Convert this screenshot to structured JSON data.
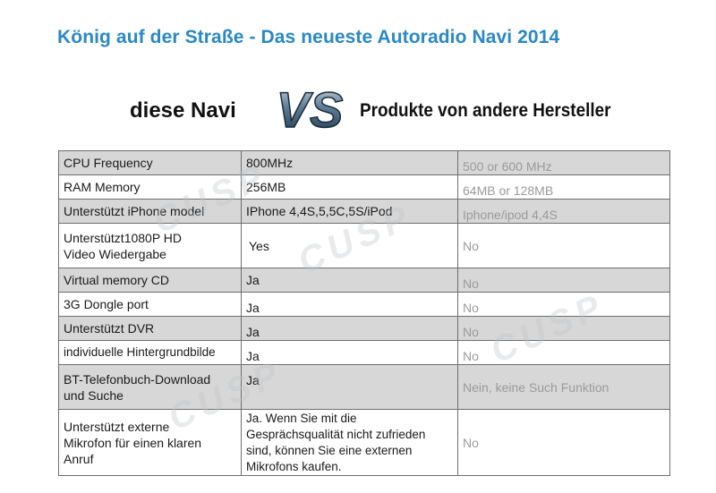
{
  "headline": "König auf der Straße - Das neueste Autoradio Navi 2014",
  "left_label": "diese Navi",
  "vs_text": "VS",
  "right_label": "Produkte von andere Hersteller",
  "watermark": "CUSP",
  "rows": [
    {
      "feature": "CPU Frequency",
      "this": "800MHz",
      "other": "500 or 600 MHz",
      "shaded": true
    },
    {
      "feature": "RAM Memory",
      "this": "256MB",
      "other": "64MB or 128MB",
      "shaded": false
    },
    {
      "feature": "Unterstützt iPhone model",
      "this": "IPhone 4,4S,5,5C,5S/iPod",
      "other": "Iphone/ipod 4,4S",
      "shaded": true
    },
    {
      "feature_line1": "Unterstützt1080P HD",
      "feature_line2": "Video Wiedergabe",
      "this": "Yes",
      "other": "No",
      "shaded": false
    },
    {
      "feature": "Virtual memory CD",
      "this": "Ja",
      "other": "No",
      "shaded": true
    },
    {
      "feature": "3G Dongle port",
      "this": "Ja",
      "other": "No",
      "shaded": false
    },
    {
      "feature": "Unterstützt DVR",
      "this": "Ja",
      "other": "No",
      "shaded": true
    },
    {
      "feature": "individuelle Hintergrundbilde",
      "this": "Ja",
      "other": "No",
      "shaded": false
    },
    {
      "feature_line1": "BT-Telefonbuch-Download",
      "feature_line2": "und Suche",
      "this": "Ja",
      "other": "Nein, keine Such Funktion",
      "shaded": true
    },
    {
      "feature_line1": "Unterstützt  externe",
      "feature_line2": "Mikrofon für einen klaren",
      "feature_line3": "Anruf",
      "this_line1": "Ja. Wenn Sie  mit  die",
      "this_line2": "Gesprächsqualität nicht zufrieden",
      "this_line3": "sind, können Sie eine externen",
      "this_line4": "Mikrofons  kaufen.",
      "other": "No",
      "shaded": false
    }
  ]
}
